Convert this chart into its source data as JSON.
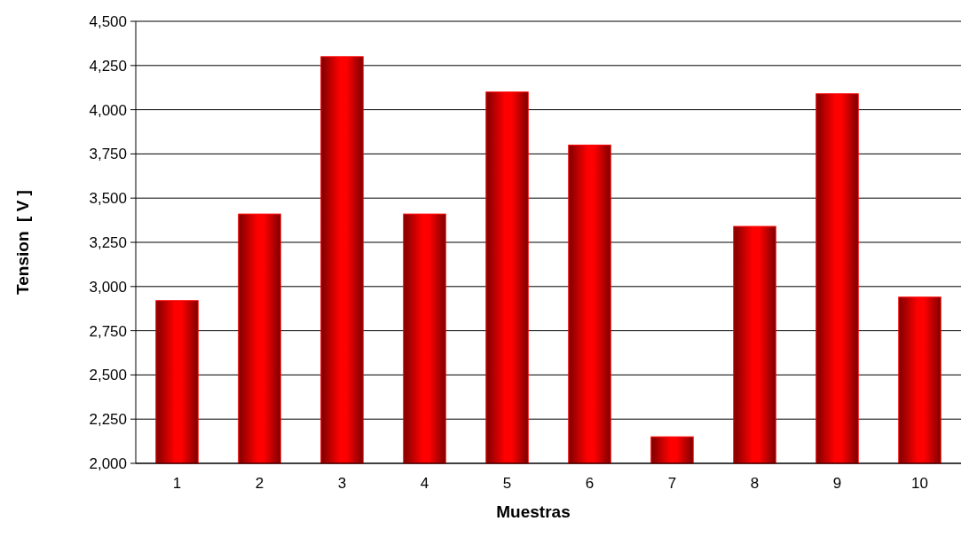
{
  "chart_data": {
    "type": "bar",
    "xlabel": "Muestras",
    "ylabel": "Tension  [ V ]",
    "categories": [
      "1",
      "2",
      "3",
      "4",
      "5",
      "6",
      "7",
      "8",
      "9",
      "10"
    ],
    "values": [
      2920,
      3410,
      4300,
      3410,
      4100,
      3800,
      2150,
      3340,
      4090,
      2940
    ],
    "color": "#ff0000",
    "ylim": [
      2000,
      4500
    ],
    "yticks": [
      {
        "value": 2000,
        "label": "2,000"
      },
      {
        "value": 2250,
        "label": "2,250"
      },
      {
        "value": 2500,
        "label": "2,500"
      },
      {
        "value": 2750,
        "label": "2,750"
      },
      {
        "value": 3000,
        "label": "3,000"
      },
      {
        "value": 3250,
        "label": "3,250"
      },
      {
        "value": 3500,
        "label": "3,500"
      },
      {
        "value": 3750,
        "label": "3,750"
      },
      {
        "value": 4000,
        "label": "4,000"
      },
      {
        "value": 4250,
        "label": "4,250"
      },
      {
        "value": 4500,
        "label": "4,500"
      }
    ],
    "grid": "y"
  }
}
